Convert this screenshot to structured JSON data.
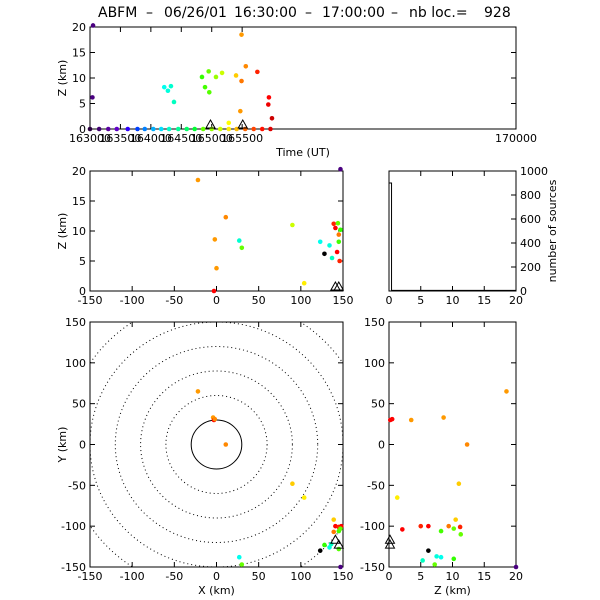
{
  "title": {
    "station": "ABFM",
    "separator": "–",
    "date": "06/26/01",
    "time_start": "16:30:00",
    "time_end": "17:00:00",
    "nb_label": "nb loc.=",
    "nb_value": "928"
  },
  "chart_data": [
    {
      "id": "z_vs_time",
      "type": "scatter",
      "xlabel": "Time (UT)",
      "ylabel": "Z (km)",
      "xlim": [
        163000,
        170000
      ],
      "ylim": [
        0,
        20
      ],
      "xticks": [
        163000,
        163500,
        164000,
        164500,
        165000,
        165500,
        170000
      ],
      "xtick_labels": [
        "163000",
        "163500",
        "164000",
        "164500",
        "165000",
        "165500",
        "170000"
      ],
      "yticks": [
        0,
        5,
        10,
        15,
        20
      ],
      "color_by": "time",
      "points": [
        {
          "x": 163050,
          "y": 20.3,
          "c": "#4a0080"
        },
        {
          "x": 163040,
          "y": 6.2,
          "c": "#4a0080"
        },
        {
          "x": 163000,
          "y": 0,
          "c": "#2a0040"
        },
        {
          "x": 163150,
          "y": 0,
          "c": "#400070"
        },
        {
          "x": 163300,
          "y": 0,
          "c": "#5a00a0"
        },
        {
          "x": 163440,
          "y": 0,
          "c": "#6000c8"
        },
        {
          "x": 163620,
          "y": 0,
          "c": "#3000ff"
        },
        {
          "x": 163780,
          "y": 0,
          "c": "#0040ff"
        },
        {
          "x": 163900,
          "y": 0,
          "c": "#0080ff"
        },
        {
          "x": 164040,
          "y": 0,
          "c": "#00b0ff"
        },
        {
          "x": 164170,
          "y": 0,
          "c": "#00e0ff"
        },
        {
          "x": 164220,
          "y": 8.2,
          "c": "#00ffee"
        },
        {
          "x": 164280,
          "y": 7.5,
          "c": "#00ffdd"
        },
        {
          "x": 164330,
          "y": 8.4,
          "c": "#00ffd0"
        },
        {
          "x": 164380,
          "y": 5.3,
          "c": "#00ffc0"
        },
        {
          "x": 164300,
          "y": 0,
          "c": "#00ffcc"
        },
        {
          "x": 164450,
          "y": 0,
          "c": "#00ff99"
        },
        {
          "x": 164590,
          "y": 0,
          "c": "#00ff66"
        },
        {
          "x": 164720,
          "y": 0,
          "c": "#00ff33"
        },
        {
          "x": 164840,
          "y": 10.2,
          "c": "#33ff00"
        },
        {
          "x": 164890,
          "y": 8.2,
          "c": "#44ff00"
        },
        {
          "x": 164960,
          "y": 7.2,
          "c": "#55ff00"
        },
        {
          "x": 164950,
          "y": 11.3,
          "c": "#66ff00"
        },
        {
          "x": 165070,
          "y": 10.2,
          "c": "#99ff00"
        },
        {
          "x": 165170,
          "y": 11.0,
          "c": "#ccff00"
        },
        {
          "x": 164860,
          "y": 0,
          "c": "#66ff00"
        },
        {
          "x": 165000,
          "y": 0,
          "c": "#99ff00"
        },
        {
          "x": 165140,
          "y": 0,
          "c": "#ccff00"
        },
        {
          "x": 165280,
          "y": 1.2,
          "c": "#ffff00"
        },
        {
          "x": 165280,
          "y": 0,
          "c": "#ffee00"
        },
        {
          "x": 165400,
          "y": 10.5,
          "c": "#ffcc00"
        },
        {
          "x": 165410,
          "y": 0,
          "c": "#ffbb00"
        },
        {
          "x": 165490,
          "y": 18.5,
          "c": "#ff9900"
        },
        {
          "x": 165560,
          "y": 12.3,
          "c": "#ff8800"
        },
        {
          "x": 165470,
          "y": 3.5,
          "c": "#ff9900"
        },
        {
          "x": 165490,
          "y": 9.4,
          "c": "#ff7700"
        },
        {
          "x": 165550,
          "y": 0,
          "c": "#ff6600"
        },
        {
          "x": 165690,
          "y": 0,
          "c": "#ff4400"
        },
        {
          "x": 165750,
          "y": 11.2,
          "c": "#ff2200"
        },
        {
          "x": 165830,
          "y": 0,
          "c": "#ff1100"
        },
        {
          "x": 165940,
          "y": 6.2,
          "c": "#ff0000"
        },
        {
          "x": 165930,
          "y": 4.8,
          "c": "#ee0000"
        },
        {
          "x": 165965,
          "y": 0,
          "c": "#dd0000"
        },
        {
          "x": 165990,
          "y": 2.1,
          "c": "#cc0000"
        }
      ],
      "stations_x": [
        164980,
        165510
      ]
    },
    {
      "id": "z_vs_x",
      "type": "scatter",
      "xlabel": "",
      "ylabel": "Z (km)",
      "xlim": [
        -150,
        150
      ],
      "ylim": [
        0,
        20
      ],
      "xticks": [
        -150,
        -100,
        -50,
        0,
        50,
        100,
        150
      ],
      "yticks": [
        0,
        5,
        10,
        15,
        20
      ],
      "points": [
        {
          "x": -22,
          "y": 18.5,
          "c": "#ff9900"
        },
        {
          "x": 11,
          "y": 12.3,
          "c": "#ff8800"
        },
        {
          "x": -2,
          "y": 8.6,
          "c": "#ff9900"
        },
        {
          "x": 27,
          "y": 8.4,
          "c": "#00ffd0"
        },
        {
          "x": 30,
          "y": 7.2,
          "c": "#66ff00"
        },
        {
          "x": 0,
          "y": 3.8,
          "c": "#ff9900"
        },
        {
          "x": -3,
          "y": 0,
          "c": "#ff0000"
        },
        {
          "x": 90,
          "y": 11.0,
          "c": "#ccff00"
        },
        {
          "x": 104,
          "y": 1.3,
          "c": "#ffee00"
        },
        {
          "x": 123,
          "y": 8.2,
          "c": "#00ffee"
        },
        {
          "x": 128,
          "y": 6.2,
          "c": "#000000"
        },
        {
          "x": 134,
          "y": 7.6,
          "c": "#00ffdd"
        },
        {
          "x": 137,
          "y": 5.5,
          "c": "#00ffc0"
        },
        {
          "x": 139,
          "y": 11.2,
          "c": "#ff2200"
        },
        {
          "x": 141,
          "y": 10.5,
          "c": "#ff0000"
        },
        {
          "x": 144,
          "y": 11.3,
          "c": "#66ff00"
        },
        {
          "x": 145,
          "y": 9.4,
          "c": "#ff7700"
        },
        {
          "x": 145,
          "y": 8.2,
          "c": "#44ff00"
        },
        {
          "x": 143,
          "y": 6.5,
          "c": "#ff0000"
        },
        {
          "x": 146,
          "y": 5.0,
          "c": "#ff2200"
        },
        {
          "x": 147,
          "y": 20.3,
          "c": "#4a0080"
        },
        {
          "x": 147,
          "y": 10.2,
          "c": "#33ff00"
        }
      ],
      "stations_x": [
        141,
        145
      ]
    },
    {
      "id": "histogram",
      "type": "bar",
      "xlabel": "",
      "ylabel": "number of sources",
      "xlim": [
        0,
        20
      ],
      "ylim": [
        0,
        1000
      ],
      "xticks": [
        0,
        5,
        10,
        15,
        20
      ],
      "yticks": [
        0,
        200,
        400,
        600,
        800,
        1000
      ],
      "bins": [
        {
          "x0": 0,
          "x1": 0.4,
          "count": 900
        },
        {
          "x0": 0.4,
          "x1": 20,
          "count": 5
        }
      ]
    },
    {
      "id": "y_vs_x",
      "type": "scatter",
      "xlabel": "X (km)",
      "ylabel": "Y (km)",
      "xlim": [
        -150,
        150
      ],
      "ylim": [
        -150,
        150
      ],
      "xticks": [
        -150,
        -100,
        -50,
        0,
        50,
        100,
        150
      ],
      "yticks": [
        -150,
        -100,
        -50,
        0,
        50,
        100,
        150
      ],
      "range_rings_km": [
        30,
        60,
        90,
        120,
        150,
        180
      ],
      "points": [
        {
          "x": -22,
          "y": 65,
          "c": "#ff9900"
        },
        {
          "x": -4,
          "y": 33,
          "c": "#ff9900"
        },
        {
          "x": -3,
          "y": 30,
          "c": "#ff0000"
        },
        {
          "x": -2,
          "y": 31,
          "c": "#ff8800"
        },
        {
          "x": 11,
          "y": 0,
          "c": "#ff8800"
        },
        {
          "x": 90,
          "y": -48,
          "c": "#ffcc00"
        },
        {
          "x": 104,
          "y": -65,
          "c": "#ffee00"
        },
        {
          "x": 139,
          "y": -92,
          "c": "#ffcc00"
        },
        {
          "x": 141,
          "y": -100,
          "c": "#ff0000"
        },
        {
          "x": 145,
          "y": -101,
          "c": "#ff2200"
        },
        {
          "x": 148,
          "y": -100,
          "c": "#ff0000"
        },
        {
          "x": 139,
          "y": -107,
          "c": "#ff7700"
        },
        {
          "x": 145,
          "y": -106,
          "c": "#44ff00"
        },
        {
          "x": 147,
          "y": -103,
          "c": "#66ff00"
        },
        {
          "x": 128,
          "y": -123,
          "c": "#33ff00"
        },
        {
          "x": 123,
          "y": -130,
          "c": "#000000"
        },
        {
          "x": 136,
          "y": -122,
          "c": "#00ffc0"
        },
        {
          "x": 134,
          "y": -126,
          "c": "#00ffdd"
        },
        {
          "x": 145,
          "y": -128,
          "c": "#55ff00"
        },
        {
          "x": 27,
          "y": -138,
          "c": "#00ffee"
        },
        {
          "x": 30,
          "y": -147,
          "c": "#66ff00"
        },
        {
          "x": 147,
          "y": -150,
          "c": "#4a0080"
        }
      ],
      "stations": [
        [
          141,
          -116
        ],
        [
          145,
          -122
        ]
      ]
    },
    {
      "id": "y_vs_z",
      "type": "scatter",
      "xlabel": "Z (km)",
      "ylabel": "",
      "xlim": [
        0,
        20
      ],
      "ylim": [
        -150,
        150
      ],
      "xticks": [
        0,
        5,
        10,
        15,
        20
      ],
      "yticks": [
        -150,
        -100,
        -50,
        0,
        50,
        100,
        150
      ],
      "points": [
        {
          "x": 0.2,
          "y": 30,
          "c": "#ff0000"
        },
        {
          "x": 0.5,
          "y": 31,
          "c": "#ff0000"
        },
        {
          "x": 3.5,
          "y": 30,
          "c": "#ff9900"
        },
        {
          "x": 8.6,
          "y": 33,
          "c": "#ff9900"
        },
        {
          "x": 12.3,
          "y": 0,
          "c": "#ff8800"
        },
        {
          "x": 18.5,
          "y": 65,
          "c": "#ff9900"
        },
        {
          "x": 11.0,
          "y": -48,
          "c": "#ffcc00"
        },
        {
          "x": 1.3,
          "y": -65,
          "c": "#ffee00"
        },
        {
          "x": 10.5,
          "y": -92,
          "c": "#ffcc00"
        },
        {
          "x": 2.1,
          "y": -104,
          "c": "#ff0000"
        },
        {
          "x": 5.0,
          "y": -100,
          "c": "#ff2200"
        },
        {
          "x": 6.2,
          "y": -100,
          "c": "#ff0000"
        },
        {
          "x": 9.4,
          "y": -100,
          "c": "#ff7700"
        },
        {
          "x": 11.2,
          "y": -101,
          "c": "#ff2200"
        },
        {
          "x": 8.2,
          "y": -106,
          "c": "#44ff00"
        },
        {
          "x": 10.2,
          "y": -103,
          "c": "#66ff00"
        },
        {
          "x": 11.3,
          "y": -110,
          "c": "#66ff00"
        },
        {
          "x": 6.2,
          "y": -130,
          "c": "#000000"
        },
        {
          "x": 7.5,
          "y": -137,
          "c": "#00ffdd"
        },
        {
          "x": 8.2,
          "y": -138,
          "c": "#00ffee"
        },
        {
          "x": 5.3,
          "y": -142,
          "c": "#00ffc0"
        },
        {
          "x": 7.2,
          "y": -147,
          "c": "#66ff00"
        },
        {
          "x": 10.2,
          "y": -140,
          "c": "#33ff00"
        },
        {
          "x": 20.0,
          "y": -150,
          "c": "#4a0080"
        }
      ],
      "stations_y": [
        -116,
        -122
      ]
    }
  ]
}
